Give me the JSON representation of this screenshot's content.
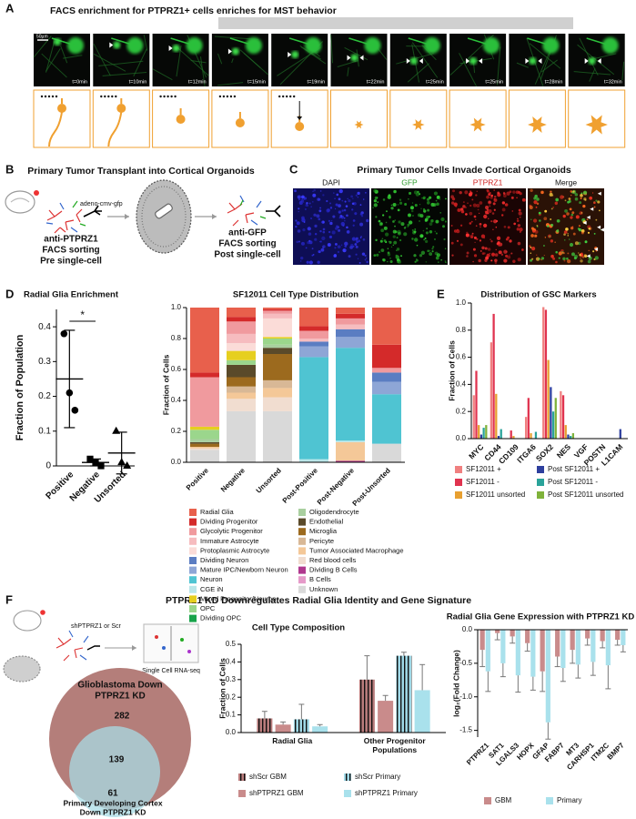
{
  "panel_labels": [
    "A",
    "B",
    "C",
    "D",
    "E",
    "F"
  ],
  "panel_a": {
    "title": "FACS enrichment for PTPRZ1+ cells enriches for MST behavior",
    "scale_bar": "50µm",
    "timepoints": [
      "t=0min",
      "t=10min",
      "t=12min",
      "t=15min",
      "t=19min",
      "t=22min",
      "t=25min",
      "t=25min",
      "t=28min",
      "t=32min"
    ]
  },
  "panel_b": {
    "title": "Primary Tumor Transplant into Cortical Organoids",
    "vector": "adeno-cmv-gfp",
    "pre_sort": [
      "anti-PTPRZ1",
      "FACS sorting",
      "Pre single-cell"
    ],
    "post_sort": [
      "anti-GFP",
      "FACS sorting",
      "Post single-cell"
    ]
  },
  "panel_c": {
    "title": "Primary Tumor Cells Invade Cortical Organoids",
    "channels": [
      "DAPI",
      "GFP",
      "PTPRZ1",
      "Merge"
    ]
  },
  "panel_f": {
    "title": "PTPRZ1 KD Downregulates Radial Glia Identity and Gene Signature",
    "knockdown": "shPTPRZ1 or Scr",
    "assay": "Single Cell RNA-seq",
    "venn": {
      "sets": [
        {
          "label": [
            "Glioblastoma Down",
            "PTPRZ1 KD"
          ],
          "count": 282
        },
        {
          "label": [
            "Primary Developing Cortex",
            "Down PTPRZ1 KD"
          ],
          "count": 61
        }
      ],
      "overlap": 139
    }
  },
  "chart_data": [
    {
      "type": "dot",
      "title": "Radial Glia Enrichment",
      "y_label": "Fraction of Population",
      "categories": [
        "Positive",
        "Negative",
        "Unsorted"
      ],
      "points": [
        [
          0.38,
          0.21,
          0.16
        ],
        [
          0.02,
          0.01,
          0
        ],
        [
          0.1,
          0.01,
          0
        ]
      ],
      "means": [
        0.25,
        0.01,
        0.037
      ],
      "errors": [
        0.14,
        0.01,
        0.06
      ],
      "markers": [
        "circle",
        "square",
        "triangle"
      ],
      "color": "#000000",
      "annotation": "*",
      "ylim": [
        0,
        0.45
      ],
      "yticks": [
        0,
        0.1,
        0.2,
        0.3,
        0.4
      ]
    },
    {
      "type": "stack",
      "title": "SF12011 Cell Type Distribution",
      "y_label": "Fraction of Cells",
      "categories": [
        "Positive",
        "Negative",
        "Unsorted",
        "Post-Positive",
        "Post-Negative",
        "Post-Unsorted"
      ],
      "ylim": [
        0,
        1
      ],
      "yticks": [
        {
          "value": 0,
          "label": "0.0"
        },
        0.2,
        0.4,
        0.6,
        0.8,
        {
          "value": 1,
          "label": "1.0"
        }
      ],
      "series": [
        {
          "name": "Radial Glia",
          "color": "#e8604c",
          "values": [
            0.42,
            0.06,
            0.01,
            0.12,
            0.04,
            0.24
          ]
        },
        {
          "name": "Dividing Progenitor",
          "color": "#d42a2a",
          "values": [
            0.03,
            0.03,
            0.01,
            0.03,
            0.03,
            0.15
          ]
        },
        {
          "name": "Glycolytic Progenitor",
          "color": "#f09a9e",
          "values": [
            0.32,
            0.08,
            0.02,
            0.05,
            0.04,
            0.03
          ]
        },
        {
          "name": "Immature Astrocyte",
          "color": "#f6bcbf",
          "values": [
            0,
            0.06,
            0.03,
            0.02,
            0.03,
            0
          ]
        },
        {
          "name": "Protoplasmic Astrocyte",
          "color": "#fbdcd8",
          "values": [
            0,
            0.05,
            0.12,
            0,
            0,
            0
          ]
        },
        {
          "name": "Dividing Neuron",
          "color": "#5b7dc2",
          "values": [
            0,
            0,
            0,
            0.03,
            0.05,
            0.06
          ]
        },
        {
          "name": "Mature IPC/Newborn Neuron",
          "color": "#8ea6d6",
          "values": [
            0,
            0,
            0,
            0.07,
            0.07,
            0.08
          ]
        },
        {
          "name": "Neuron",
          "color": "#4fc4d2",
          "values": [
            0,
            0,
            0,
            0.66,
            0.6,
            0.32
          ]
        },
        {
          "name": "CGE iN",
          "color": "#b9e6e9",
          "values": [
            0,
            0,
            0,
            0.02,
            0.01,
            0
          ]
        },
        {
          "name": "Mixed Progenitor/Neuron",
          "color": "#e6cf1f",
          "values": [
            0.02,
            0.06,
            0.01,
            0,
            0,
            0
          ]
        },
        {
          "name": "OPC",
          "color": "#9bd68c",
          "values": [
            0.06,
            0.03,
            0.04,
            0,
            0,
            0
          ]
        },
        {
          "name": "Dividing OPC",
          "color": "#17a34a",
          "values": [
            0,
            0,
            0,
            0,
            0,
            0
          ]
        },
        {
          "name": "Oligodendrocyte",
          "color": "#a9cf9f",
          "values": [
            0.02,
            0,
            0.02,
            0,
            0,
            0
          ]
        },
        {
          "name": "Endothelial",
          "color": "#5a4a2a",
          "values": [
            0.01,
            0.08,
            0.04,
            0,
            0,
            0
          ]
        },
        {
          "name": "Microglia",
          "color": "#9c6a1e",
          "values": [
            0.02,
            0.06,
            0.17,
            0,
            0,
            0
          ]
        },
        {
          "name": "Pericyte",
          "color": "#d8b896",
          "values": [
            0,
            0.04,
            0.05,
            0,
            0,
            0
          ]
        },
        {
          "name": "Tumor Associated Macrophage",
          "color": "#f4c898",
          "values": [
            0.01,
            0.04,
            0.06,
            0,
            0.12,
            0
          ]
        },
        {
          "name": "Red blood cells",
          "color": "#f1ddd0",
          "values": [
            0.01,
            0.08,
            0.09,
            0,
            0,
            0
          ]
        },
        {
          "name": "Dividing B Cells",
          "color": "#b0388f",
          "values": [
            0,
            0,
            0,
            0,
            0.01,
            0
          ]
        },
        {
          "name": "B Cells",
          "color": "#e59ac9",
          "values": [
            0,
            0,
            0,
            0,
            0,
            0
          ]
        },
        {
          "name": "Unknown",
          "color": "#d9d9d9",
          "values": [
            0.08,
            0.33,
            0.33,
            0,
            0,
            0.12
          ]
        }
      ]
    },
    {
      "type": "bar",
      "title": "Distribution of GSC Markers",
      "y_label": "Fraction of Cells",
      "categories": [
        "MYC",
        "CD44",
        "CD109",
        "ITGA6",
        "SOX2",
        "NES",
        "VGF",
        "POSTN",
        "L1CAM"
      ],
      "ylim": [
        0,
        1
      ],
      "yticks": [
        {
          "value": 0,
          "label": "0.0"
        },
        0.2,
        0.4,
        0.6,
        0.8,
        {
          "value": 1,
          "label": "1.0"
        }
      ],
      "series": [
        {
          "name": "SF12011 +",
          "color": "#f08080",
          "values": [
            0.32,
            0.71,
            0,
            0.16,
            0.97,
            0.35,
            0,
            0,
            0
          ]
        },
        {
          "name": "SF12011 -",
          "color": "#e0334f",
          "values": [
            0.5,
            0.92,
            0.06,
            0.3,
            0.95,
            0.32,
            0,
            0,
            0
          ]
        },
        {
          "name": "SF12011 unsorted",
          "color": "#e8a030",
          "values": [
            0.1,
            0.33,
            0.02,
            0.04,
            0.58,
            0.1,
            0,
            0,
            0
          ]
        },
        {
          "name": "Post SF12011 +",
          "color": "#2e3f9e",
          "values": [
            0.03,
            0.02,
            0,
            0,
            0.38,
            0.03,
            0,
            0,
            0.07
          ]
        },
        {
          "name": "Post SF12011 -",
          "color": "#2aa39a",
          "values": [
            0.08,
            0.07,
            0,
            0.05,
            0.2,
            0.02,
            0,
            0,
            0
          ]
        },
        {
          "name": "Post SF12011 unsorted",
          "color": "#7fb23a",
          "values": [
            0.1,
            0,
            0,
            0,
            0.3,
            0.04,
            0,
            0,
            0
          ]
        }
      ]
    },
    {
      "type": "bar",
      "title": "Cell Type Composition",
      "y_label": "Fraction of Cells",
      "categories": [
        "Radial Glia",
        "Other Progenitor Populations"
      ],
      "ylim": [
        0,
        0.5
      ],
      "yticks": [
        {
          "value": 0,
          "label": "0.0"
        },
        0.1,
        0.2,
        0.3,
        0.4,
        0.5
      ],
      "series": [
        {
          "name": "shScr GBM",
          "color": "#b97c7c",
          "pattern": "striped",
          "values": [
            0.08,
            0.3
          ],
          "errors": [
            0.04,
            0.135
          ]
        },
        {
          "name": "shPTPRZ1 GBM",
          "color": "#c98b8b",
          "values": [
            0.045,
            0.18
          ],
          "errors": [
            0.015,
            0.03
          ]
        },
        {
          "name": "shScr Primary",
          "color": "#9fd8e6",
          "pattern": "striped",
          "values": [
            0.075,
            0.435
          ],
          "errors": [
            0.085,
            0.02
          ]
        },
        {
          "name": "shPTPRZ1 Primary",
          "color": "#a9e1ec",
          "values": [
            0.035,
            0.24
          ],
          "errors": [
            0.01,
            0.145
          ]
        }
      ]
    },
    {
      "type": "bar",
      "title": "Radial Glia Gene Expression with PTPRZ1 KD",
      "y_label": "log₂(Fold Change)",
      "categories": [
        "PTPRZ1",
        "SAT1",
        "LGALS3",
        "HOPX",
        "GFAP",
        "FABP7",
        "MT3",
        "CARHSP1",
        "ITM2C",
        "BMP7"
      ],
      "ylim": [
        -1.6,
        0
      ],
      "yticks": [
        {
          "value": 0,
          "label": "0.0"
        },
        -0.5,
        {
          "value": -1,
          "label": "-1.0"
        },
        -1.5
      ],
      "series": [
        {
          "name": "GBM",
          "color": "#c98b8b",
          "values": [
            -0.3,
            -0.05,
            -0.1,
            -0.2,
            -0.62,
            -0.4,
            -0.3,
            -0.13,
            -0.17,
            -0.15
          ],
          "errors": [
            0.25,
            0.1,
            0.1,
            0.12,
            0.3,
            0.15,
            0.2,
            0.1,
            0.1,
            0.08
          ]
        },
        {
          "name": "Primary",
          "color": "#a9e1ec",
          "values": [
            -0.62,
            -0.5,
            -0.68,
            -0.7,
            -1.38,
            -0.57,
            -0.52,
            -0.48,
            -0.53,
            -0.23
          ],
          "errors": [
            0.3,
            0.2,
            0.25,
            0.2,
            0.25,
            0.2,
            0.2,
            0.2,
            0.35,
            0.1
          ]
        }
      ]
    }
  ]
}
